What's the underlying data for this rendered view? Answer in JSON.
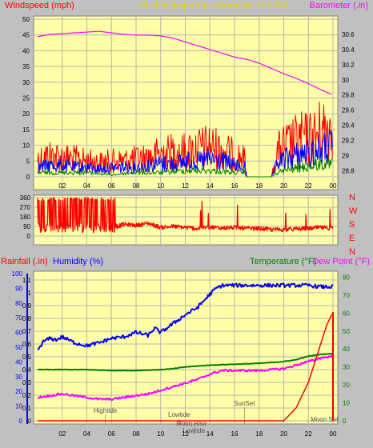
{
  "colors": {
    "background": "#c0c0c0",
    "plot_bg": "#ffffa8",
    "grid": "#b4b4b4",
    "windspeed": "#ff0000",
    "wind_avg": "#0000ff",
    "wind_low": "#008000",
    "barometer": "#ff00ff",
    "direction": "#ff0000",
    "rainfall": "#ff0000",
    "humidity": "#0000ff",
    "temperature": "#008000",
    "dewpoint": "#ff00ff",
    "header_title": "#e6d400",
    "axis_text": "#000000",
    "marker_text": "#505050"
  },
  "chart_data": [
    {
      "type": "line",
      "panel": "wind",
      "title": "24 hour graph day   November 15 2018",
      "left_label": "Windspeed (mph)",
      "right_label": "Barometer (.in)",
      "x_ticks": [
        "02",
        "04",
        "06",
        "08",
        "10",
        "12",
        "14",
        "16",
        "18",
        "20",
        "22",
        "00"
      ],
      "y_ticks": [
        "0",
        "5",
        "10",
        "15",
        "20",
        "25",
        "30",
        "35",
        "40",
        "45",
        "50"
      ],
      "y_right_ticks": [
        "28.8",
        "29",
        "29.2",
        "29.4",
        "29.6",
        "29.8",
        "30",
        "30.2",
        "30.4",
        "30.6"
      ],
      "ylim": [
        0,
        50
      ],
      "y_right_lim": [
        28.72,
        30.8
      ],
      "xlim": [
        0,
        24
      ],
      "series": [
        {
          "role": "gust",
          "x": [
            0,
            1,
            2,
            3,
            4,
            5,
            6,
            7,
            8,
            9,
            10,
            11,
            12,
            13,
            14,
            15,
            16,
            16.8,
            17,
            18,
            19,
            19.5,
            20,
            20.5,
            21,
            21.5,
            22,
            22.5,
            23,
            23.5,
            24
          ],
          "values": [
            10,
            12,
            11,
            10,
            9,
            8,
            9,
            9,
            10,
            11,
            13,
            14,
            14,
            16,
            17,
            15,
            12,
            10,
            0,
            0,
            0,
            14,
            17,
            18,
            20,
            21,
            21,
            22,
            25,
            27,
            28
          ]
        },
        {
          "role": "average",
          "x": [
            0,
            1,
            2,
            3,
            4,
            5,
            6,
            7,
            8,
            9,
            10,
            11,
            12,
            13,
            14,
            15,
            16,
            16.8,
            17,
            18,
            19,
            19.5,
            20,
            20.5,
            21,
            21.5,
            22,
            22.5,
            23,
            23.5,
            24
          ],
          "values": [
            5,
            6,
            6,
            5,
            5,
            4,
            5,
            5,
            5,
            6,
            7,
            7,
            8,
            8,
            9,
            8,
            6,
            5,
            0,
            0,
            0,
            7,
            9,
            10,
            11,
            12,
            12,
            13,
            14,
            15,
            16
          ]
        },
        {
          "role": "low",
          "x": [
            0,
            2,
            4,
            6,
            8,
            10,
            12,
            14,
            16,
            16.8,
            17,
            19,
            19.5,
            20,
            21,
            22,
            23,
            24
          ],
          "values": [
            2,
            2,
            2,
            1,
            2,
            2,
            3,
            3,
            2,
            2,
            0,
            0,
            2,
            3,
            4,
            5,
            6,
            6
          ]
        },
        {
          "role": "barometer",
          "axis": "right",
          "x": [
            0,
            1,
            2,
            3,
            4,
            5,
            6,
            7,
            8,
            9,
            10,
            11,
            12,
            13,
            14,
            15,
            16,
            17,
            18,
            19,
            20,
            21,
            22,
            23,
            24
          ],
          "values": [
            30.57,
            30.6,
            30.61,
            30.62,
            30.63,
            30.64,
            30.62,
            30.6,
            30.59,
            30.59,
            30.58,
            30.55,
            30.5,
            30.45,
            30.4,
            30.35,
            30.3,
            30.27,
            30.22,
            30.15,
            30.08,
            30.02,
            29.95,
            29.87,
            29.8
          ]
        }
      ]
    },
    {
      "type": "line",
      "panel": "direction",
      "right_letters": [
        "N",
        "W",
        "S",
        "E",
        "N"
      ],
      "y_ticks": [
        "0",
        "90",
        "180",
        "270",
        "360"
      ],
      "ylim": [
        0,
        360
      ],
      "xlim": [
        0,
        24
      ],
      "series": [
        {
          "role": "direction",
          "x": [
            0,
            0.5,
            1,
            1.5,
            2,
            2.5,
            3,
            3.5,
            4,
            4.5,
            5,
            5.5,
            6,
            6.5,
            7,
            8,
            9,
            10,
            11,
            12,
            13,
            14,
            15,
            16,
            17,
            18,
            19,
            20,
            21,
            22,
            23,
            24
          ],
          "values": [
            350,
            60,
            340,
            30,
            350,
            70,
            300,
            90,
            330,
            100,
            300,
            80,
            220,
            90,
            110,
            100,
            120,
            80,
            90,
            80,
            70,
            85,
            75,
            80,
            70,
            70,
            60,
            60,
            65,
            70,
            80,
            70
          ]
        }
      ]
    },
    {
      "type": "line",
      "panel": "temperature",
      "left_label_a": "Rainfall (.in)",
      "left_label_b": "Humidity (%)",
      "right_label_a": "Temperature (°F)",
      "right_label_b": "Dew Point (°F)",
      "x_ticks": [
        "02",
        "04",
        "06",
        "08",
        "10",
        "12",
        "14",
        "16",
        "18",
        "20",
        "22",
        "00"
      ],
      "y_ticks_humidity": [
        "0",
        "10",
        "20",
        "30",
        "40",
        "50",
        "60",
        "70",
        "80",
        "90",
        "100"
      ],
      "y_ticks_rain": [
        "0",
        "0.1",
        "0.2",
        "0.3",
        "0.4",
        "0.5",
        "0.6",
        "0.7",
        "0.8",
        "0.9",
        "1",
        "1.1"
      ],
      "y_ticks_temp": [
        "0",
        "10",
        "20",
        "30",
        "40",
        "50",
        "60",
        "70",
        "80"
      ],
      "ylim_humidity": [
        0,
        100
      ],
      "ylim_temp": [
        0,
        82
      ],
      "xlim": [
        0,
        24
      ],
      "markers": [
        {
          "label": "Hightide",
          "x": 5.5
        },
        {
          "label": "Lowtide",
          "x": 11.5
        },
        {
          "label": "Moon Rise",
          "x": 12.5
        },
        {
          "label": "Lowtide",
          "x": 12.7
        },
        {
          "label": "SunSet",
          "x": 16.8
        },
        {
          "label": "Moon Set",
          "x": 23.3
        }
      ],
      "series": [
        {
          "role": "humidity",
          "axis": "humidity",
          "x": [
            0,
            0.5,
            1,
            1.5,
            2,
            3,
            4,
            5,
            6,
            7,
            8,
            9,
            9.5,
            10,
            11,
            12,
            13,
            14,
            14.5,
            15,
            16,
            17,
            18,
            19,
            20,
            21,
            22,
            23,
            24
          ],
          "values": [
            48,
            54,
            56,
            55,
            57,
            53,
            51,
            53,
            56,
            57,
            60,
            58,
            63,
            60,
            66,
            72,
            77,
            86,
            90,
            92,
            92,
            92,
            92,
            92,
            92,
            92,
            92,
            91,
            91
          ]
        },
        {
          "role": "temperature",
          "axis": "temp",
          "x": [
            0,
            2,
            4,
            6,
            8,
            10,
            11,
            12,
            14,
            16,
            18,
            20,
            21,
            22,
            23,
            24
          ],
          "values": [
            28.5,
            28.5,
            28.5,
            28,
            28,
            28.5,
            29,
            30,
            31,
            31.5,
            32,
            33,
            34,
            36,
            37,
            37.5
          ]
        },
        {
          "role": "dewpoint",
          "axis": "temp",
          "x": [
            0,
            1,
            2,
            3,
            4,
            5,
            6,
            7,
            8,
            9,
            10,
            11,
            12,
            13,
            14,
            15,
            16,
            18,
            20,
            21,
            22,
            23,
            24
          ],
          "values": [
            13,
            14,
            15,
            14,
            13,
            12,
            12,
            13,
            14,
            15,
            17,
            19,
            21,
            23,
            26,
            28,
            28,
            28,
            29,
            31,
            33,
            35,
            36
          ]
        },
        {
          "role": "rainfall",
          "axis": "rain",
          "x": [
            0,
            19,
            20,
            21,
            22,
            22.5,
            23,
            23.5,
            24
          ],
          "values": [
            0,
            0,
            0,
            0.1,
            0.3,
            0.45,
            0.6,
            0.75,
            0.85
          ]
        }
      ]
    }
  ]
}
